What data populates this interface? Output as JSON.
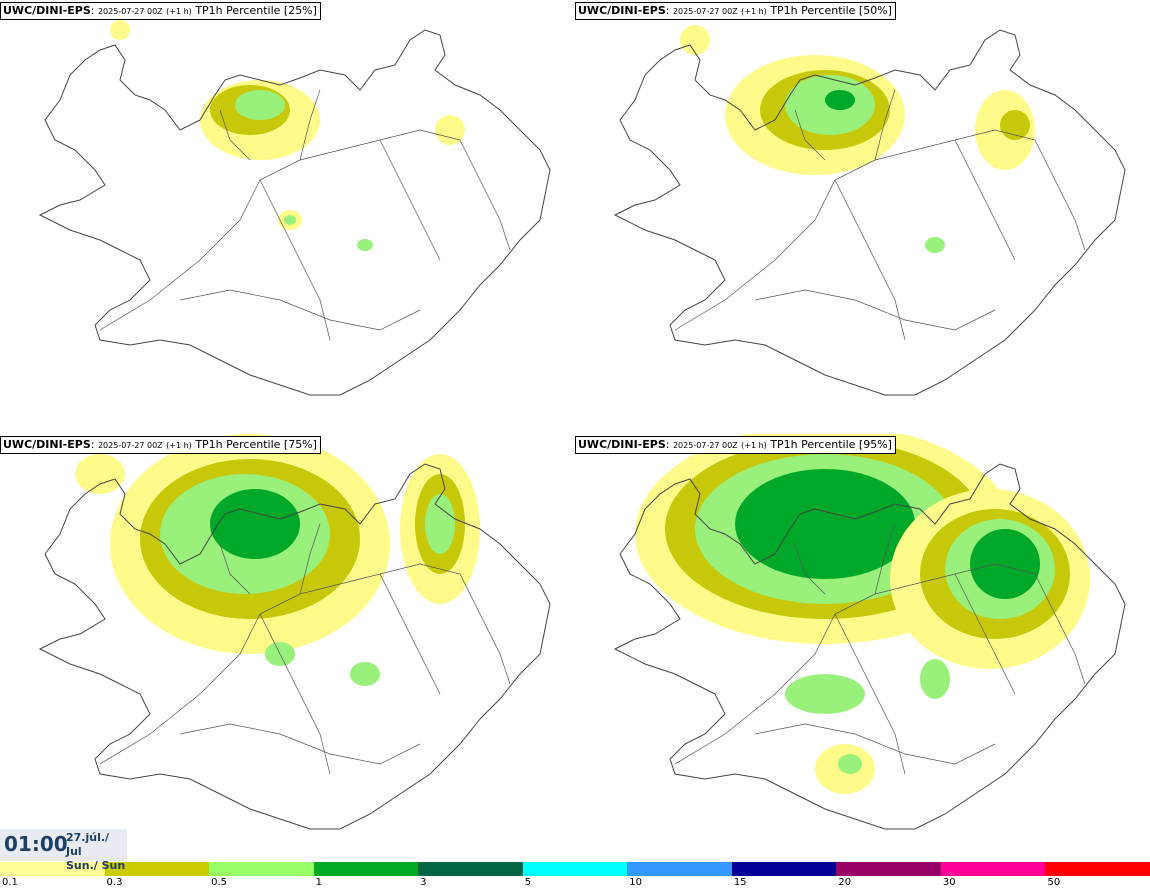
{
  "panels": [
    {
      "model": "UWC/DINI-EPS",
      "run": "2025-07-27 00Z",
      "lead": "(+1 h)",
      "param": "TP1h Percentile [25%]"
    },
    {
      "model": "UWC/DINI-EPS",
      "run": "2025-07-27 00Z",
      "lead": "(+1 h)",
      "param": "TP1h Percentile [50%]"
    },
    {
      "model": "UWC/DINI-EPS",
      "run": "2025-07-27 00Z",
      "lead": "(+1 h)",
      "param": "TP1h Percentile [75%]"
    },
    {
      "model": "UWC/DINI-EPS",
      "run": "2025-07-27 00Z",
      "lead": "(+1 h)",
      "param": "TP1h Percentile [95%]"
    }
  ],
  "clock": {
    "time": "01:00",
    "date_line1": "27.júl./ Jul",
    "date_line2": "Sun./ Sun"
  },
  "legend": {
    "colors": [
      "#ffff99",
      "#cccc00",
      "#99ff66",
      "#00aa22",
      "#006644",
      "#00ffff",
      "#3399ff",
      "#000099",
      "#990066",
      "#ff0099",
      "#ff0000"
    ],
    "ticks": [
      "0.1",
      "0.3",
      "0.5",
      "1",
      "3",
      "5",
      "10",
      "15",
      "20",
      "30",
      "50"
    ]
  },
  "palette": {
    "light_yellow": "#fffb8a",
    "olive": "#c8c80a",
    "light_green": "#99f07a",
    "green": "#00a82a",
    "dark_green": "#006e3a"
  }
}
